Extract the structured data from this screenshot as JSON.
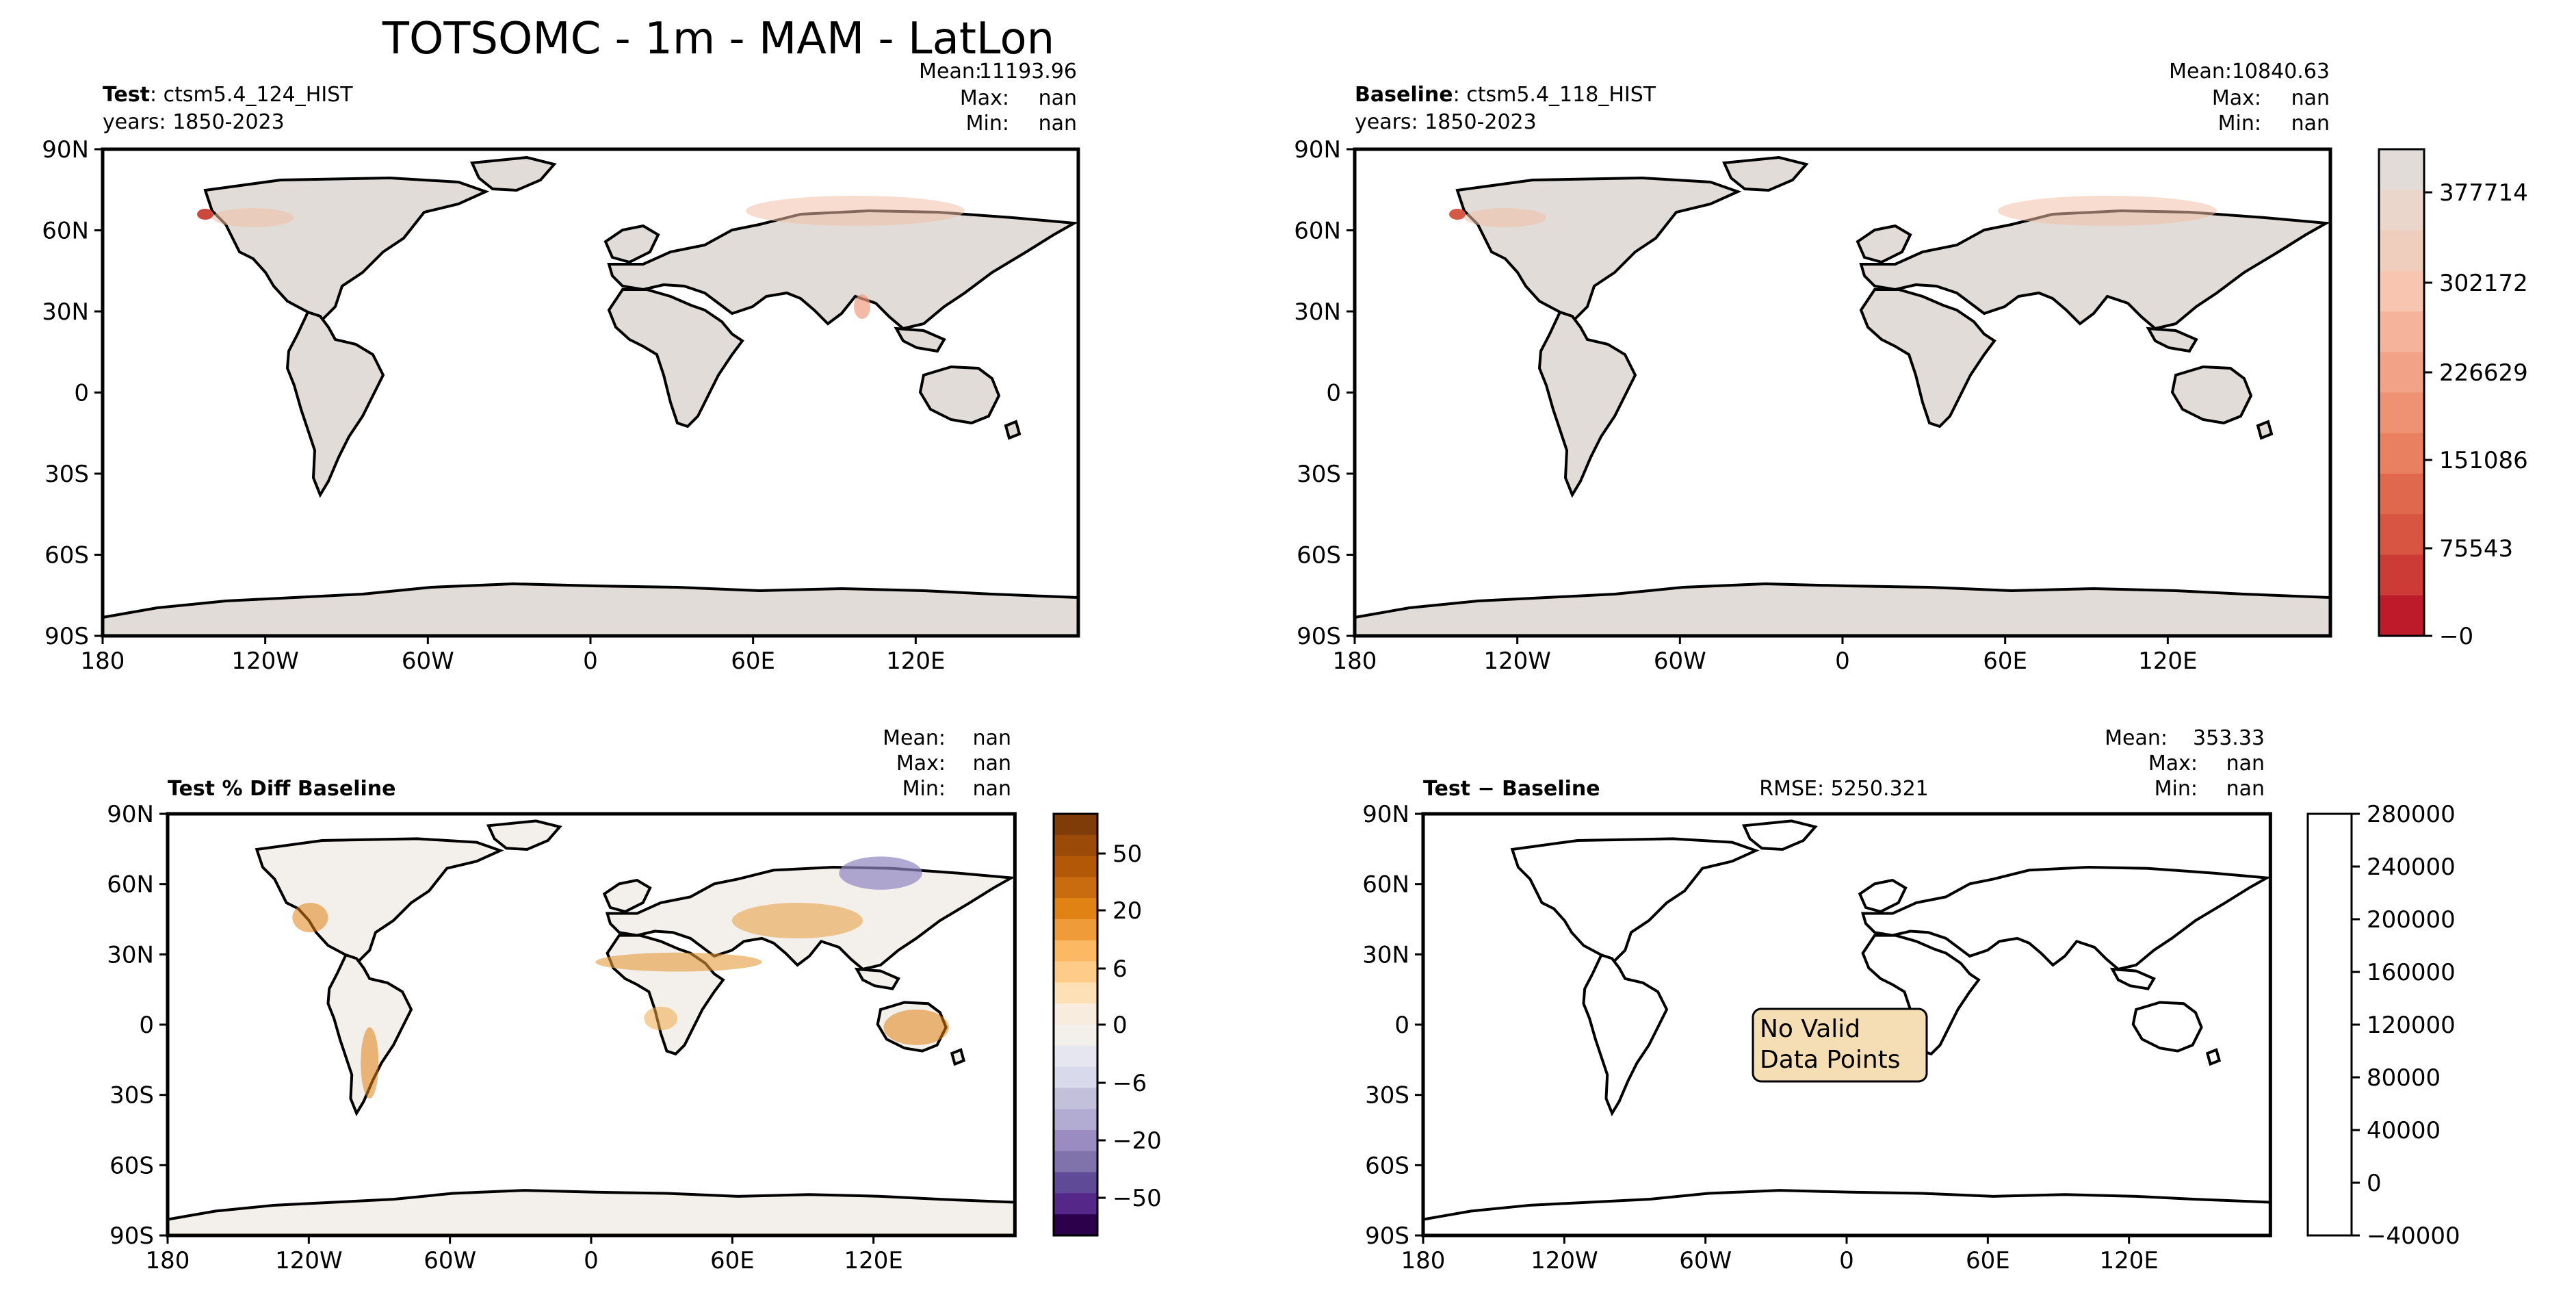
{
  "suptitle": "TOTSOMC - 1m - MAM - LatLon",
  "stats_labels": {
    "mean": "Mean:",
    "max": "Max:",
    "min": "Min:"
  },
  "axes": {
    "lon_ticks": [
      "180",
      "120W",
      "60W",
      "0",
      "60E",
      "120E"
    ],
    "lat_ticks": [
      "90N",
      "60N",
      "30N",
      "0",
      "30S",
      "60S",
      "90S"
    ]
  },
  "panels": [
    {
      "id": "test",
      "bold_label": "Test",
      "case": ": ctsm5.4_124_HIST",
      "years": "years: 1850-2023",
      "mean": "11193.96",
      "max": "nan",
      "min": "nan",
      "land_color": "#e2dcd8",
      "ocean_color": "#ffffff"
    },
    {
      "id": "baseline",
      "bold_label": "Baseline",
      "case": ": ctsm5.4_118_HIST",
      "years": "years: 1850-2023",
      "mean": "10840.63",
      "max": "nan",
      "min": "nan",
      "land_color": "#e2dcd8",
      "ocean_color": "#ffffff"
    },
    {
      "id": "pctdiff",
      "title": "Test % Diff Baseline",
      "mean": "nan",
      "max": "nan",
      "min": "nan",
      "land_color": "#f3efea",
      "ocean_color": "#ffffff"
    },
    {
      "id": "diff",
      "title": "Test − Baseline",
      "rmse": "RMSE: 5250.321",
      "mean": "353.33",
      "max": "nan",
      "min": "nan",
      "land_color": "#ffffff",
      "ocean_color": "#ffffff",
      "message": [
        "No Valid",
        "Data Points"
      ]
    }
  ],
  "colorbars": {
    "abs": {
      "labels": [
        "377714",
        "302172",
        "226629",
        "151086",
        "75543",
        "−0"
      ],
      "colors": [
        "#bd1a2a",
        "#cd3b37",
        "#d85541",
        "#e0694d",
        "#e9805f",
        "#ef9173",
        "#f2a286",
        "#f5b39b",
        "#f7c5b0",
        "#f0cebd",
        "#ead6cb",
        "#e2dcd8"
      ]
    },
    "pct": {
      "labels": [
        "50",
        "20",
        "6",
        "0",
        "−6",
        "−20",
        "−50"
      ],
      "colors": [
        "#7f3b08",
        "#9c4a08",
        "#b35806",
        "#c96c0f",
        "#e08214",
        "#ef9b3a",
        "#fdb863",
        "#fecc88",
        "#fee0b6",
        "#f8ecdf",
        "#f3efea",
        "#e6e6f0",
        "#d8daeb",
        "#c3c0dc",
        "#b2abd2",
        "#9a8cc1",
        "#8073ac",
        "#5e4a96",
        "#542788",
        "#2d004b"
      ]
    },
    "diff": {
      "labels": [
        "280000",
        "240000",
        "200000",
        "160000",
        "120000",
        "80000",
        "40000",
        "0",
        "−40000"
      ]
    }
  }
}
